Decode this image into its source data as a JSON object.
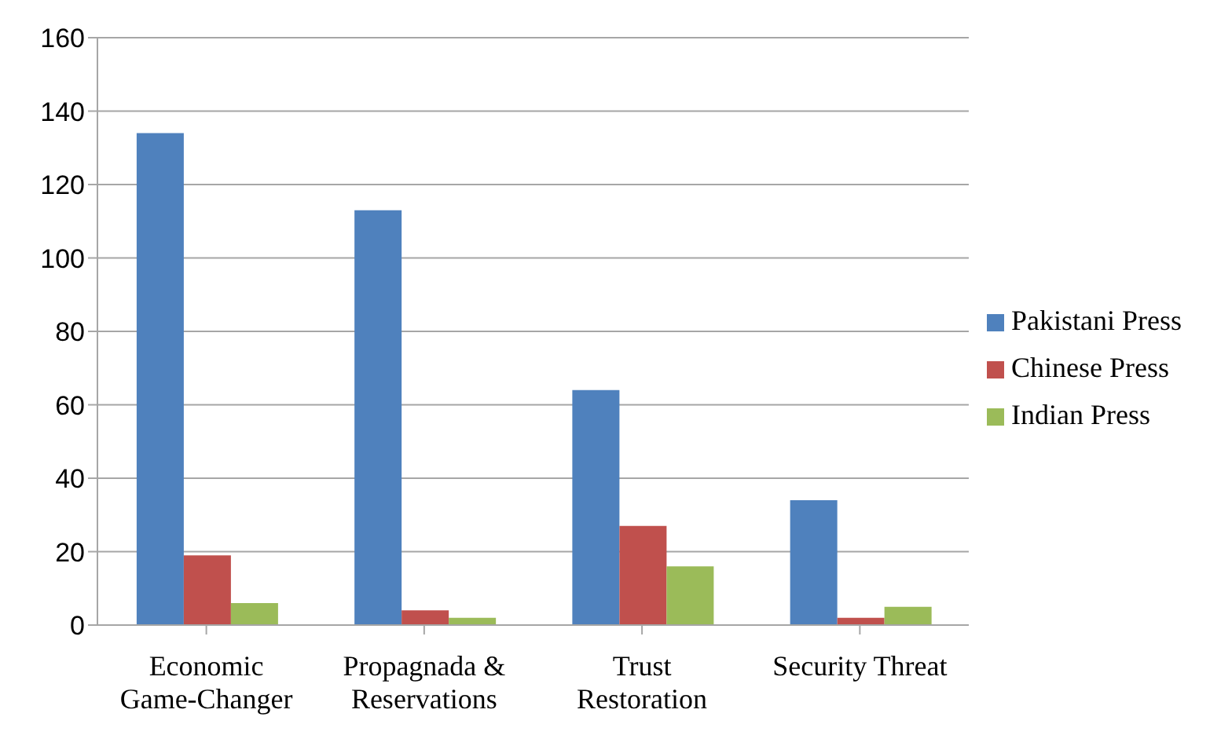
{
  "chart_data": {
    "type": "bar",
    "categories": [
      "Economic Game-Changer",
      "Propagnada & Reservations",
      "Trust Restoration",
      "Security Threat"
    ],
    "series": [
      {
        "name": "Pakistani Press",
        "color": "#4f81bd",
        "values": [
          134,
          113,
          64,
          34
        ]
      },
      {
        "name": "Chinese Press",
        "color": "#c0504d",
        "values": [
          19,
          4,
          27,
          2
        ]
      },
      {
        "name": "Indian Press",
        "color": "#9bbb59",
        "values": [
          6,
          2,
          16,
          5
        ]
      }
    ],
    "ylim": [
      0,
      160
    ],
    "yticks": [
      0,
      20,
      40,
      60,
      80,
      100,
      120,
      140,
      160
    ],
    "grid": "y",
    "legend": "right"
  }
}
